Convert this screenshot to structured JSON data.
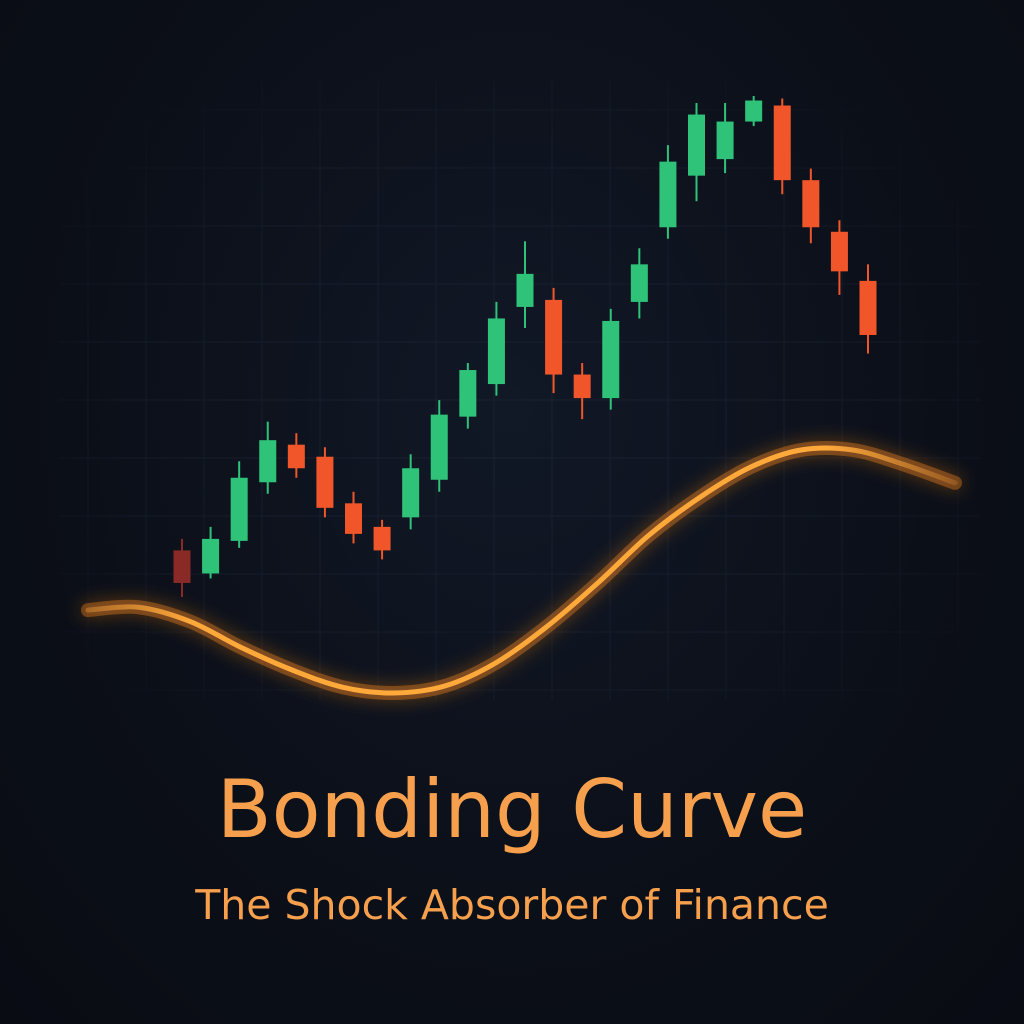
{
  "title": "Bonding Curve",
  "subtitle": "The Shock Absorber of Finance",
  "colors": {
    "background": "#0b0f18",
    "grid": "#1a2231",
    "bullish": "#2fc37a",
    "bearish": "#f0562a",
    "first_candle": "#8a2a26",
    "curve": "#ffa93a",
    "curve_glow": "#ff8a1e",
    "title": "#f6a04d"
  },
  "chart_data": [
    {
      "type": "candlestick",
      "grid": true,
      "legend": "none",
      "ylim": [
        0,
        100
      ],
      "candles": [
        {
          "open": 9.3,
          "close": 2.8,
          "high": 11.6,
          "low": 0.0
        },
        {
          "open": 4.7,
          "close": 11.6,
          "high": 14.0,
          "low": 3.7
        },
        {
          "open": 11.2,
          "close": 23.8,
          "high": 27.1,
          "low": 9.8
        },
        {
          "open": 22.9,
          "close": 31.3,
          "high": 35.0,
          "low": 20.6
        },
        {
          "open": 30.4,
          "close": 25.7,
          "high": 32.7,
          "low": 23.8
        },
        {
          "open": 28.0,
          "close": 17.8,
          "high": 29.9,
          "low": 15.9
        },
        {
          "open": 18.7,
          "close": 12.6,
          "high": 21.0,
          "low": 10.7
        },
        {
          "open": 14.0,
          "close": 9.3,
          "high": 15.4,
          "low": 7.5
        },
        {
          "open": 15.9,
          "close": 25.7,
          "high": 28.5,
          "low": 13.5
        },
        {
          "open": 23.4,
          "close": 36.4,
          "high": 39.3,
          "low": 21.0
        },
        {
          "open": 36.0,
          "close": 45.3,
          "high": 46.7,
          "low": 33.6
        },
        {
          "open": 42.5,
          "close": 55.6,
          "high": 58.9,
          "low": 40.2
        },
        {
          "open": 57.9,
          "close": 64.5,
          "high": 71.0,
          "low": 53.7
        },
        {
          "open": 59.3,
          "close": 44.4,
          "high": 61.7,
          "low": 40.7
        },
        {
          "open": 44.4,
          "close": 39.7,
          "high": 46.7,
          "low": 35.5
        },
        {
          "open": 39.7,
          "close": 55.1,
          "high": 57.5,
          "low": 37.4
        },
        {
          "open": 58.9,
          "close": 66.4,
          "high": 69.6,
          "low": 55.6
        },
        {
          "open": 73.8,
          "close": 86.9,
          "high": 90.2,
          "low": 71.5
        },
        {
          "open": 84.1,
          "close": 96.3,
          "high": 98.6,
          "low": 79.0
        },
        {
          "open": 87.4,
          "close": 94.9,
          "high": 98.6,
          "low": 84.6
        },
        {
          "open": 94.9,
          "close": 99.1,
          "high": 100.0,
          "low": 94.0
        },
        {
          "open": 98.1,
          "close": 83.2,
          "high": 99.5,
          "low": 80.4
        },
        {
          "open": 83.2,
          "close": 73.8,
          "high": 85.5,
          "low": 70.6
        },
        {
          "open": 72.9,
          "close": 65.0,
          "high": 75.2,
          "low": 60.3
        },
        {
          "open": 63.1,
          "close": 52.3,
          "high": 66.4,
          "low": 48.6
        }
      ]
    },
    {
      "type": "line",
      "series": [
        {
          "curve_points": [
            [
              0.0,
              5.8
            ],
            [
              3.7,
              6.0
            ],
            [
              7.5,
              5.0
            ],
            [
              11.2,
              3.2
            ],
            [
              15.0,
              1.6
            ],
            [
              18.7,
              0.4
            ],
            [
              22.4,
              0.0
            ],
            [
              26.2,
              0.5
            ],
            [
              29.9,
              2.1
            ],
            [
              33.6,
              4.6
            ],
            [
              37.4,
              7.7
            ],
            [
              41.1,
              11.0
            ],
            [
              44.9,
              13.7
            ],
            [
              48.6,
              15.8
            ],
            [
              52.3,
              17.0
            ],
            [
              56.1,
              17.0
            ],
            [
              59.8,
              16.0
            ],
            [
              63.6,
              14.7
            ]
          ]
        }
      ]
    }
  ]
}
